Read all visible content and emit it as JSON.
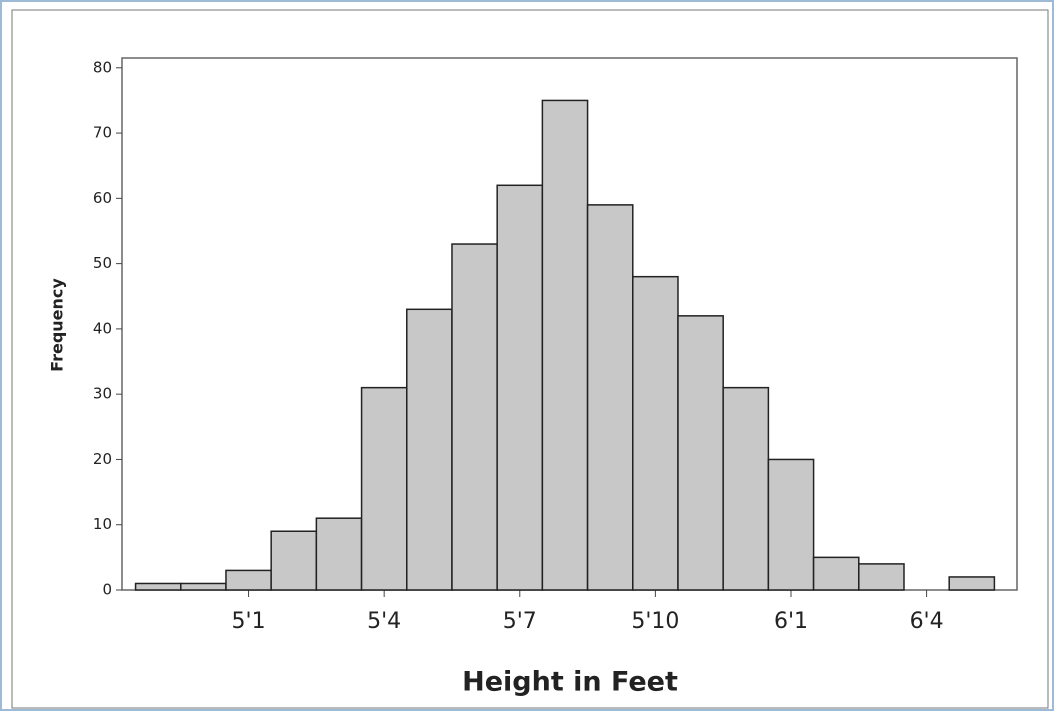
{
  "chart_data": {
    "type": "histogram",
    "xlabel": "Height in Feet",
    "ylabel": "Frequency",
    "bins": [
      58.5,
      59.5,
      60.5,
      61.5,
      62.5,
      63.5,
      64.5,
      65.5,
      66.5,
      67.5,
      68.5,
      69.5,
      70.5,
      71.5,
      72.5,
      73.5,
      74.5,
      75.5,
      76.5,
      77.5
    ],
    "values": [
      1,
      1,
      3,
      9,
      11,
      31,
      43,
      53,
      62,
      75,
      59,
      48,
      42,
      31,
      20,
      5,
      4,
      0,
      2
    ],
    "color": "#c8c8c8",
    "xlim": [
      58.2,
      78
    ],
    "ylim": [
      0,
      81.5
    ],
    "xticks": [
      {
        "value": 61,
        "label": "5'1"
      },
      {
        "value": 64,
        "label": "5'4"
      },
      {
        "value": 67,
        "label": "5'7"
      },
      {
        "value": 70,
        "label": "5'10"
      },
      {
        "value": 73,
        "label": "6'1"
      },
      {
        "value": 76,
        "label": "6'4"
      }
    ],
    "yticks": [
      0,
      10,
      20,
      30,
      40,
      50,
      60,
      70,
      80
    ]
  }
}
